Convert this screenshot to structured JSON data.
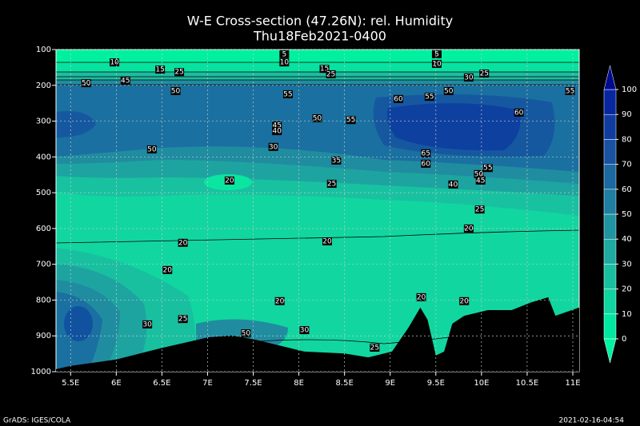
{
  "chart_data": {
    "type": "contour",
    "title": "W-E Cross-section (47.26N): rel. Humidity",
    "subtitle": "Thu18Feb2021-0400",
    "xlim": [
      5.34,
      11.07
    ],
    "ylim": [
      100,
      1000
    ],
    "y_reversed": true,
    "grid": true,
    "xticks": [
      {
        "value": 5.5,
        "label": "5.5E"
      },
      {
        "value": 6,
        "label": "6E"
      },
      {
        "value": 6.5,
        "label": "6.5E"
      },
      {
        "value": 7,
        "label": "7E"
      },
      {
        "value": 7.5,
        "label": "7.5E"
      },
      {
        "value": 8,
        "label": "8E"
      },
      {
        "value": 8.5,
        "label": "8.5E"
      },
      {
        "value": 9,
        "label": "9E"
      },
      {
        "value": 9.5,
        "label": "9.5E"
      },
      {
        "value": 10,
        "label": "10E"
      },
      {
        "value": 10.5,
        "label": "10.5E"
      },
      {
        "value": 11,
        "label": "11E"
      }
    ],
    "yticks": [
      100,
      200,
      300,
      400,
      500,
      600,
      700,
      800,
      900,
      1000
    ],
    "terrain": {
      "color": "#000000",
      "lon": [
        5.34,
        5.5,
        6.0,
        6.48,
        7.01,
        7.27,
        7.53,
        8.06,
        8.5,
        8.76,
        9.02,
        9.2,
        9.33,
        9.41,
        9.5,
        9.59,
        9.68,
        9.81,
        10.07,
        10.33,
        10.55,
        10.73,
        10.81,
        11.07
      ],
      "surface_pressure": [
        993,
        984,
        966,
        935,
        904,
        899,
        911,
        944,
        949,
        960,
        944,
        877,
        821,
        855,
        955,
        944,
        866,
        844,
        828,
        828,
        806,
        792,
        844,
        821
      ]
    },
    "colorbar": {
      "ticks": [
        0,
        10,
        20,
        30,
        40,
        50,
        60,
        70,
        80,
        90,
        100
      ],
      "colors": [
        "#00e8a0",
        "#10d4a0",
        "#18c0a0",
        "#1eaaa0",
        "#2094a0",
        "#207ea0",
        "#1c68a0",
        "#1852a0",
        "#103ca0",
        "#0826a0"
      ],
      "under_color": "#00f4a0",
      "over_color": "#000c90"
    },
    "contour_labels": [
      {
        "value": 5,
        "lon": 7.84,
        "p": 113
      },
      {
        "value": 10,
        "lon": 7.84,
        "p": 136
      },
      {
        "value": 5,
        "lon": 9.51,
        "p": 113
      },
      {
        "value": 10,
        "lon": 9.51,
        "p": 140
      },
      {
        "value": 50,
        "lon": 5.67,
        "p": 194
      },
      {
        "value": 10,
        "lon": 5.98,
        "p": 136
      },
      {
        "value": 15,
        "lon": 6.48,
        "p": 156
      },
      {
        "value": 25,
        "lon": 6.69,
        "p": 163
      },
      {
        "value": 45,
        "lon": 6.1,
        "p": 187
      },
      {
        "value": 50,
        "lon": 6.65,
        "p": 216
      },
      {
        "value": 15,
        "lon": 8.28,
        "p": 154
      },
      {
        "value": 25,
        "lon": 8.35,
        "p": 169
      },
      {
        "value": 55,
        "lon": 7.88,
        "p": 225
      },
      {
        "value": 60,
        "lon": 9.09,
        "p": 238
      },
      {
        "value": 55,
        "lon": 9.43,
        "p": 232
      },
      {
        "value": 50,
        "lon": 9.64,
        "p": 216
      },
      {
        "value": 30,
        "lon": 9.86,
        "p": 178
      },
      {
        "value": 25,
        "lon": 10.03,
        "p": 167
      },
      {
        "value": 55,
        "lon": 10.97,
        "p": 216
      },
      {
        "value": 60,
        "lon": 10.41,
        "p": 276
      },
      {
        "value": 50,
        "lon": 8.2,
        "p": 292
      },
      {
        "value": 55,
        "lon": 8.57,
        "p": 297
      },
      {
        "value": 45,
        "lon": 7.76,
        "p": 312
      },
      {
        "value": 40,
        "lon": 7.76,
        "p": 328
      },
      {
        "value": 50,
        "lon": 6.39,
        "p": 379
      },
      {
        "value": 30,
        "lon": 7.72,
        "p": 372
      },
      {
        "value": 35,
        "lon": 8.41,
        "p": 410
      },
      {
        "value": 65,
        "lon": 9.39,
        "p": 390
      },
      {
        "value": 60,
        "lon": 9.39,
        "p": 419
      },
      {
        "value": 55,
        "lon": 10.07,
        "p": 431
      },
      {
        "value": 50,
        "lon": 9.97,
        "p": 448
      },
      {
        "value": 45,
        "lon": 9.99,
        "p": 466
      },
      {
        "value": 40,
        "lon": 9.69,
        "p": 477
      },
      {
        "value": 20,
        "lon": 7.24,
        "p": 466
      },
      {
        "value": 25,
        "lon": 8.36,
        "p": 475
      },
      {
        "value": 25,
        "lon": 9.98,
        "p": 547
      },
      {
        "value": 20,
        "lon": 9.86,
        "p": 600
      },
      {
        "value": 20,
        "lon": 8.31,
        "p": 636
      },
      {
        "value": 20,
        "lon": 6.73,
        "p": 640
      },
      {
        "value": 20,
        "lon": 6.56,
        "p": 716
      },
      {
        "value": 20,
        "lon": 7.79,
        "p": 803
      },
      {
        "value": 20,
        "lon": 9.34,
        "p": 792
      },
      {
        "value": 20,
        "lon": 9.81,
        "p": 803
      },
      {
        "value": 25,
        "lon": 6.73,
        "p": 853
      },
      {
        "value": 30,
        "lon": 6.34,
        "p": 868
      },
      {
        "value": 30,
        "lon": 8.06,
        "p": 884
      },
      {
        "value": 50,
        "lon": 7.42,
        "p": 893
      },
      {
        "value": 25,
        "lon": 8.83,
        "p": 933
      }
    ]
  },
  "footer": {
    "left": "GrADS: IGES/COLA",
    "right": "2021-02-16-04:54"
  }
}
